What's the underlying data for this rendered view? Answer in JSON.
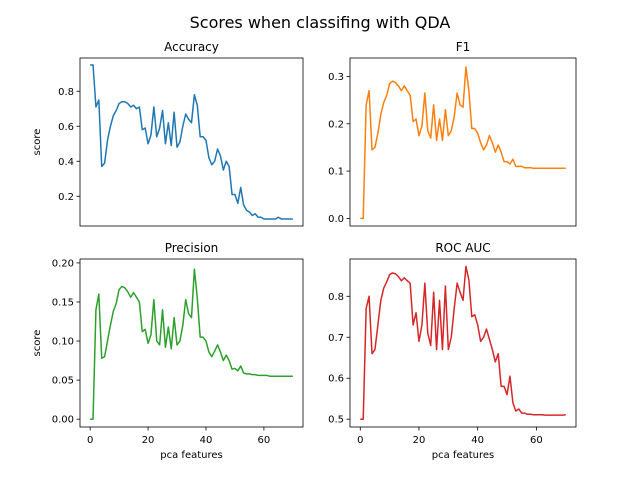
{
  "figure": {
    "suptitle": "Scores when classifing with QDA"
  },
  "chart_data": [
    {
      "type": "line",
      "title": "Accuracy",
      "xlabel": "",
      "ylabel": "score",
      "color": "#1f77b4",
      "xlim": [
        -3.5,
        73.5
      ],
      "ylim": [
        0.03,
        0.99
      ],
      "show_xticklabels": false,
      "yticks": [
        0.2,
        0.4,
        0.6,
        0.8
      ],
      "ytick_labels": [
        "0.2",
        "0.4",
        "0.6",
        "0.8"
      ],
      "x": [
        0,
        1,
        2,
        3,
        4,
        5,
        6,
        7,
        8,
        9,
        10,
        11,
        12,
        13,
        14,
        15,
        16,
        17,
        18,
        19,
        20,
        21,
        22,
        23,
        24,
        25,
        26,
        27,
        28,
        29,
        30,
        31,
        32,
        33,
        34,
        35,
        36,
        37,
        38,
        39,
        40,
        41,
        42,
        43,
        44,
        45,
        46,
        47,
        48,
        49,
        50,
        51,
        52,
        53,
        54,
        55,
        56,
        57,
        58,
        59,
        60,
        61,
        62,
        63,
        64,
        65,
        66,
        67,
        68,
        69,
        70
      ],
      "y": [
        0.95,
        0.95,
        0.71,
        0.75,
        0.37,
        0.39,
        0.52,
        0.6,
        0.66,
        0.69,
        0.73,
        0.74,
        0.74,
        0.73,
        0.71,
        0.72,
        0.7,
        0.71,
        0.58,
        0.59,
        0.5,
        0.55,
        0.71,
        0.54,
        0.59,
        0.69,
        0.5,
        0.62,
        0.49,
        0.68,
        0.48,
        0.51,
        0.6,
        0.67,
        0.64,
        0.62,
        0.78,
        0.72,
        0.54,
        0.54,
        0.52,
        0.42,
        0.38,
        0.4,
        0.47,
        0.43,
        0.35,
        0.4,
        0.37,
        0.21,
        0.21,
        0.16,
        0.25,
        0.15,
        0.12,
        0.11,
        0.09,
        0.1,
        0.08,
        0.08,
        0.07,
        0.07,
        0.07,
        0.07,
        0.07,
        0.08,
        0.07,
        0.07,
        0.07,
        0.07,
        0.07
      ]
    },
    {
      "type": "line",
      "title": "F1",
      "xlabel": "",
      "ylabel": "",
      "color": "#ff7f0e",
      "xlim": [
        -3.5,
        73.5
      ],
      "ylim": [
        -0.016,
        0.339
      ],
      "show_xticklabels": false,
      "yticks": [
        0.0,
        0.1,
        0.2,
        0.3
      ],
      "ytick_labels": [
        "0.0",
        "0.1",
        "0.2",
        "0.3"
      ],
      "x": [
        0,
        1,
        2,
        3,
        4,
        5,
        6,
        7,
        8,
        9,
        10,
        11,
        12,
        13,
        14,
        15,
        16,
        17,
        18,
        19,
        20,
        21,
        22,
        23,
        24,
        25,
        26,
        27,
        28,
        29,
        30,
        31,
        32,
        33,
        34,
        35,
        36,
        37,
        38,
        39,
        40,
        41,
        42,
        43,
        44,
        45,
        46,
        47,
        48,
        49,
        50,
        51,
        52,
        53,
        54,
        55,
        56,
        57,
        58,
        59,
        60,
        61,
        62,
        63,
        64,
        65,
        66,
        67,
        68,
        69,
        70
      ],
      "y": [
        0.0,
        0.0,
        0.24,
        0.27,
        0.145,
        0.15,
        0.18,
        0.22,
        0.245,
        0.26,
        0.285,
        0.29,
        0.287,
        0.28,
        0.27,
        0.28,
        0.27,
        0.26,
        0.205,
        0.21,
        0.175,
        0.195,
        0.265,
        0.185,
        0.17,
        0.24,
        0.165,
        0.21,
        0.165,
        0.23,
        0.175,
        0.185,
        0.215,
        0.265,
        0.24,
        0.235,
        0.32,
        0.27,
        0.19,
        0.19,
        0.18,
        0.16,
        0.145,
        0.155,
        0.175,
        0.16,
        0.14,
        0.155,
        0.14,
        0.12,
        0.12,
        0.115,
        0.125,
        0.11,
        0.11,
        0.11,
        0.107,
        0.107,
        0.107,
        0.106,
        0.106,
        0.106,
        0.106,
        0.106,
        0.106,
        0.106,
        0.106,
        0.106,
        0.106,
        0.106,
        0.106
      ]
    },
    {
      "type": "line",
      "title": "Precision",
      "xlabel": "pca features",
      "ylabel": "score",
      "color": "#2ca02c",
      "xlim": [
        -3.5,
        73.5
      ],
      "ylim": [
        -0.01,
        0.205
      ],
      "show_xticklabels": true,
      "xticks": [
        0,
        20,
        40,
        60
      ],
      "xtick_labels": [
        "0",
        "20",
        "40",
        "60"
      ],
      "yticks": [
        0.0,
        0.05,
        0.1,
        0.15,
        0.2
      ],
      "ytick_labels": [
        "0.00",
        "0.05",
        "0.10",
        "0.15",
        "0.20"
      ],
      "x": [
        0,
        1,
        2,
        3,
        4,
        5,
        6,
        7,
        8,
        9,
        10,
        11,
        12,
        13,
        14,
        15,
        16,
        17,
        18,
        19,
        20,
        21,
        22,
        23,
        24,
        25,
        26,
        27,
        28,
        29,
        30,
        31,
        32,
        33,
        34,
        35,
        36,
        37,
        38,
        39,
        40,
        41,
        42,
        43,
        44,
        45,
        46,
        47,
        48,
        49,
        50,
        51,
        52,
        53,
        54,
        55,
        56,
        57,
        58,
        59,
        60,
        61,
        62,
        63,
        64,
        65,
        66,
        67,
        68,
        69,
        70
      ],
      "y": [
        0.0,
        0.0,
        0.14,
        0.16,
        0.078,
        0.08,
        0.1,
        0.12,
        0.138,
        0.148,
        0.166,
        0.17,
        0.168,
        0.163,
        0.156,
        0.162,
        0.156,
        0.15,
        0.112,
        0.115,
        0.097,
        0.108,
        0.153,
        0.1,
        0.095,
        0.14,
        0.092,
        0.118,
        0.09,
        0.13,
        0.095,
        0.1,
        0.12,
        0.153,
        0.135,
        0.13,
        0.192,
        0.155,
        0.105,
        0.105,
        0.1,
        0.086,
        0.08,
        0.087,
        0.095,
        0.086,
        0.075,
        0.082,
        0.075,
        0.064,
        0.065,
        0.062,
        0.068,
        0.059,
        0.058,
        0.058,
        0.057,
        0.057,
        0.056,
        0.056,
        0.056,
        0.056,
        0.055,
        0.055,
        0.055,
        0.055,
        0.055,
        0.055,
        0.055,
        0.055,
        0.055
      ]
    },
    {
      "type": "line",
      "title": "ROC AUC",
      "xlabel": "pca features",
      "ylabel": "",
      "color": "#d62728",
      "xlim": [
        -3.5,
        73.5
      ],
      "ylim": [
        0.481,
        0.891
      ],
      "show_xticklabels": true,
      "xticks": [
        0,
        20,
        40,
        60
      ],
      "xtick_labels": [
        "0",
        "20",
        "40",
        "60"
      ],
      "yticks": [
        0.5,
        0.6,
        0.7,
        0.8
      ],
      "ytick_labels": [
        "0.5",
        "0.6",
        "0.7",
        "0.8"
      ],
      "x": [
        0,
        1,
        2,
        3,
        4,
        5,
        6,
        7,
        8,
        9,
        10,
        11,
        12,
        13,
        14,
        15,
        16,
        17,
        18,
        19,
        20,
        21,
        22,
        23,
        24,
        25,
        26,
        27,
        28,
        29,
        30,
        31,
        32,
        33,
        34,
        35,
        36,
        37,
        38,
        39,
        40,
        41,
        42,
        43,
        44,
        45,
        46,
        47,
        48,
        49,
        50,
        51,
        52,
        53,
        54,
        55,
        56,
        57,
        58,
        59,
        60,
        61,
        62,
        63,
        64,
        65,
        66,
        67,
        68,
        69,
        70
      ],
      "y": [
        0.5,
        0.5,
        0.77,
        0.8,
        0.66,
        0.67,
        0.73,
        0.79,
        0.82,
        0.835,
        0.853,
        0.857,
        0.855,
        0.848,
        0.838,
        0.845,
        0.838,
        0.832,
        0.73,
        0.76,
        0.69,
        0.73,
        0.832,
        0.71,
        0.68,
        0.81,
        0.67,
        0.79,
        0.67,
        0.825,
        0.67,
        0.7,
        0.77,
        0.832,
        0.81,
        0.79,
        0.873,
        0.84,
        0.75,
        0.755,
        0.73,
        0.69,
        0.7,
        0.72,
        0.695,
        0.67,
        0.64,
        0.66,
        0.58,
        0.58,
        0.56,
        0.605,
        0.54,
        0.52,
        0.525,
        0.515,
        0.515,
        0.512,
        0.512,
        0.511,
        0.511,
        0.511,
        0.511,
        0.51,
        0.51,
        0.51,
        0.51,
        0.51,
        0.51,
        0.51,
        0.511
      ]
    }
  ]
}
